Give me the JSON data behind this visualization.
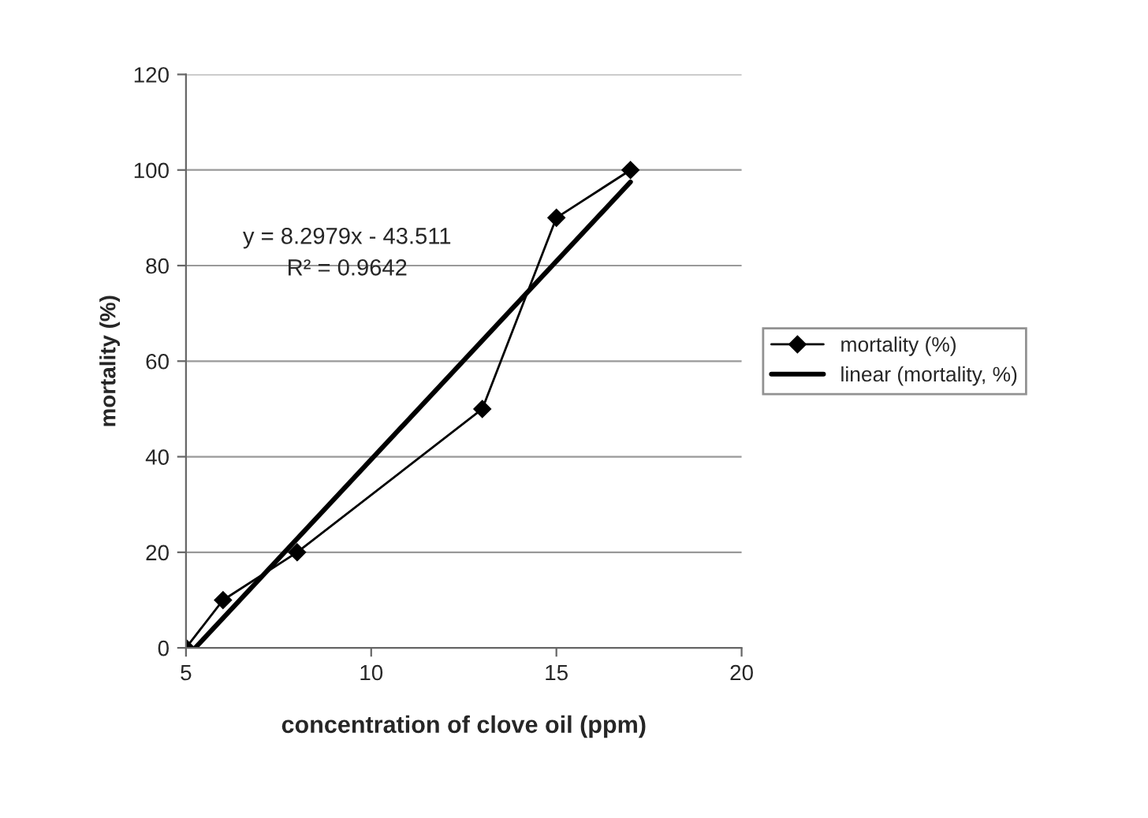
{
  "chart_data": {
    "type": "line",
    "xlabel": "concentration of clove oil (ppm)",
    "ylabel": "mortality (%)",
    "series": [
      {
        "name": "mortality (%)",
        "color": "#000000",
        "x": [
          5,
          6,
          8,
          13,
          15,
          17
        ],
        "values": [
          0,
          10,
          20,
          50,
          90,
          100
        ],
        "marker": "diamond",
        "line_style": "solid"
      },
      {
        "name": "linear (mortality, %)",
        "color": "#000000",
        "x": [
          5.25,
          17
        ],
        "values": [
          0,
          97.5
        ],
        "marker": "none",
        "line_style": "solid"
      }
    ],
    "annotations": [
      "y = 8.2979x - 43.511",
      "R² = 0.9642"
    ],
    "xlim": [
      5,
      20
    ],
    "xticks": [
      5,
      10,
      15,
      20
    ],
    "ylim": [
      0,
      120
    ],
    "yticks": [
      0,
      20,
      40,
      60,
      80,
      100,
      120
    ],
    "grid": "y",
    "legend": "right"
  }
}
